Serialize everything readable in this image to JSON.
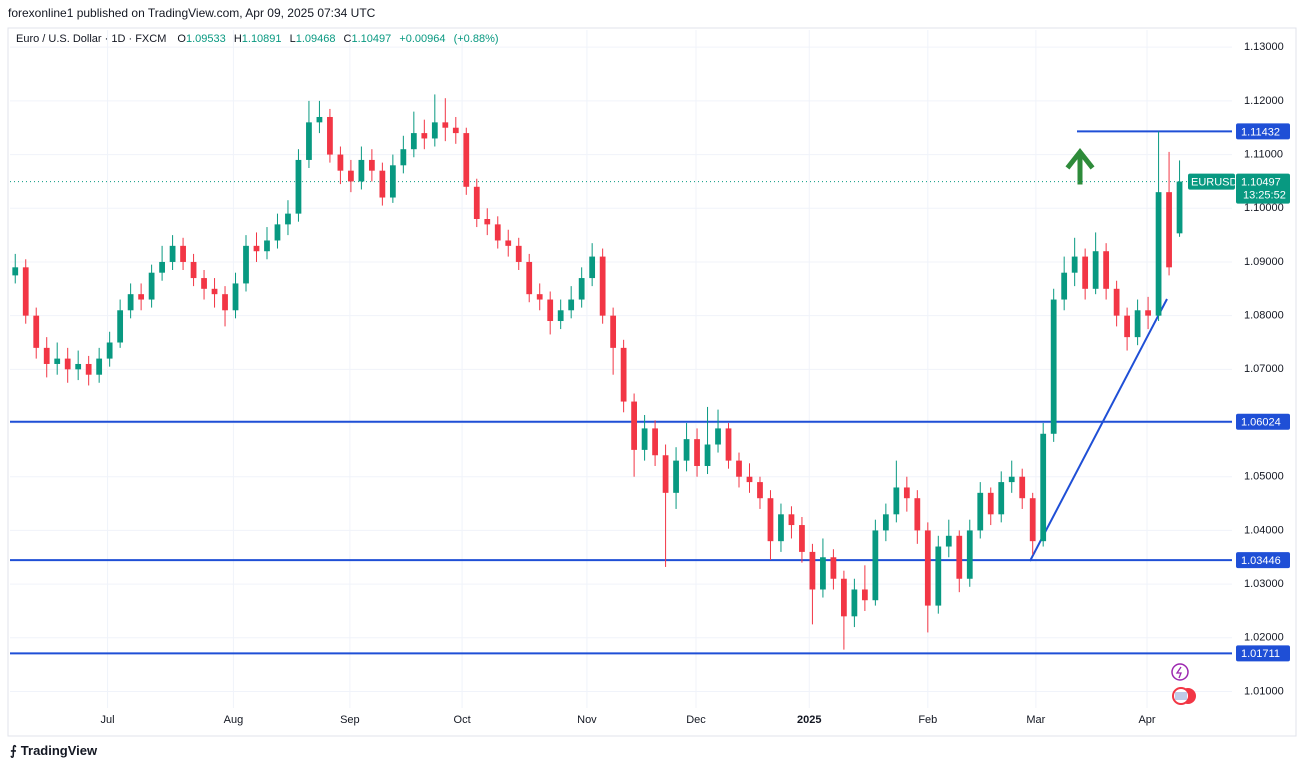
{
  "chart_data": {
    "type": "candlestick",
    "published": "forexonline1 published on TradingView.com, Apr 09, 2025 07:34 UTC",
    "title": "Euro / U.S. Dollar · 1D · FXCM",
    "ohlc_letters": [
      "O",
      "H",
      "L",
      "C"
    ],
    "change": "+0.00964",
    "change_pct": "(+0.88%)",
    "symbol": "EURUSD",
    "countdown": "13:25:52",
    "brand": "TradingView",
    "up_color": "#089981",
    "down_color": "#f23645",
    "line_color": "#1f4fd6",
    "grid": true,
    "ylim": [
      1.0073,
      1.1332
    ],
    "yticks": [
      {
        "value": 1.01,
        "label": "1.01000"
      },
      {
        "value": 1.02,
        "label": "1.02000"
      },
      {
        "value": 1.03,
        "label": "1.03000"
      },
      {
        "value": 1.04,
        "label": "1.04000"
      },
      {
        "value": 1.05,
        "label": "1.05000"
      },
      {
        "value": 1.06,
        "label": "1.06000"
      },
      {
        "value": 1.07,
        "label": "1.07000"
      },
      {
        "value": 1.08,
        "label": "1.08000"
      },
      {
        "value": 1.09,
        "label": "1.09000"
      },
      {
        "value": 1.1,
        "label": "1.10000"
      },
      {
        "value": 1.11,
        "label": "1.11000"
      },
      {
        "value": 1.12,
        "label": "1.12000"
      },
      {
        "value": 1.13,
        "label": "1.13000"
      }
    ],
    "xlim": [
      -0.5,
      116
    ],
    "xticks": [
      {
        "value": 8.8,
        "label": "Jul"
      },
      {
        "value": 20.8,
        "label": "Aug"
      },
      {
        "value": 31.9,
        "label": "Sep"
      },
      {
        "value": 42.6,
        "label": "Oct"
      },
      {
        "value": 54.5,
        "label": "Nov"
      },
      {
        "value": 64.9,
        "label": "Dec"
      },
      {
        "value": 75.7,
        "label": "2025"
      },
      {
        "value": 87.0,
        "label": "Feb"
      },
      {
        "value": 97.3,
        "label": "Mar"
      },
      {
        "value": 107.9,
        "label": "Apr"
      }
    ],
    "price_lines": [
      1.11432,
      1.06024,
      1.03446,
      1.01711
    ],
    "open": [
      1.0875,
      1.089,
      1.08,
      1.074,
      1.071,
      1.072,
      1.07,
      1.071,
      1.069,
      1.072,
      1.075,
      1.081,
      1.084,
      1.083,
      1.088,
      1.09,
      1.093,
      1.09,
      1.087,
      1.085,
      1.084,
      1.081,
      1.086,
      1.093,
      1.092,
      1.094,
      1.097,
      1.099,
      1.109,
      1.116,
      1.117,
      1.11,
      1.107,
      1.105,
      1.109,
      1.107,
      1.102,
      1.108,
      1.111,
      1.114,
      1.113,
      1.116,
      1.115,
      1.114,
      1.104,
      1.098,
      1.097,
      1.094,
      1.093,
      1.09,
      1.084,
      1.083,
      1.079,
      1.081,
      1.083,
      1.087,
      1.091,
      1.08,
      1.074,
      1.064,
      1.055,
      1.059,
      1.054,
      1.047,
      1.053,
      1.057,
      1.052,
      1.056,
      1.059,
      1.053,
      1.05,
      1.049,
      1.046,
      1.038,
      1.043,
      1.041,
      1.036,
      1.029,
      1.035,
      1.031,
      1.024,
      1.029,
      1.027,
      1.04,
      1.043,
      1.048,
      1.046,
      1.04,
      1.026,
      1.037,
      1.039,
      1.031,
      1.04,
      1.047,
      1.043,
      1.049,
      1.05,
      1.046,
      1.038,
      1.058,
      1.083,
      1.088,
      1.091,
      1.085,
      1.092,
      1.085,
      1.08,
      1.076,
      1.081,
      1.08,
      1.103,
      1.09533
    ],
    "high": [
      1.0915,
      1.0905,
      1.0815,
      1.076,
      1.075,
      1.074,
      1.0735,
      1.0725,
      1.074,
      1.077,
      1.083,
      1.086,
      1.086,
      1.0895,
      1.093,
      1.095,
      1.0945,
      1.0915,
      1.0885,
      1.087,
      1.0855,
      1.088,
      1.095,
      1.0955,
      1.0965,
      1.099,
      1.1015,
      1.111,
      1.12,
      1.12,
      1.1185,
      1.1115,
      1.109,
      1.1115,
      1.111,
      1.1085,
      1.11,
      1.1135,
      1.118,
      1.1165,
      1.1212,
      1.1205,
      1.117,
      1.115,
      1.1055,
      1.1,
      1.0985,
      1.096,
      1.0945,
      1.0915,
      1.086,
      1.0845,
      1.083,
      1.0855,
      1.089,
      1.0935,
      1.0925,
      1.0815,
      1.0755,
      1.0655,
      1.0615,
      1.0605,
      1.056,
      1.0555,
      1.06,
      1.059,
      1.063,
      1.0625,
      1.06,
      1.0545,
      1.0525,
      1.05,
      1.0475,
      1.045,
      1.0445,
      1.0425,
      1.0375,
      1.0385,
      1.0365,
      1.0325,
      1.031,
      1.0335,
      1.042,
      1.045,
      1.053,
      1.05,
      1.0475,
      1.0415,
      1.039,
      1.042,
      1.04,
      1.042,
      1.049,
      1.048,
      1.051,
      1.053,
      1.0515,
      1.047,
      1.06,
      1.085,
      1.091,
      1.0945,
      1.0925,
      1.0955,
      1.0935,
      1.0865,
      1.0815,
      1.083,
      1.0835,
      1.1143,
      1.1105,
      1.10891
    ],
    "low": [
      1.086,
      1.0785,
      1.072,
      1.0685,
      1.069,
      1.0675,
      1.068,
      1.067,
      1.0675,
      1.0705,
      1.074,
      1.0795,
      1.081,
      1.0815,
      1.0865,
      1.0885,
      1.0885,
      1.0855,
      1.083,
      1.0815,
      1.078,
      1.0795,
      1.0845,
      1.09,
      1.0905,
      1.0925,
      1.095,
      1.0975,
      1.1075,
      1.114,
      1.1085,
      1.1045,
      1.103,
      1.1035,
      1.105,
      1.1005,
      1.101,
      1.1065,
      1.1095,
      1.111,
      1.1115,
      1.1125,
      1.112,
      1.1025,
      1.0965,
      1.095,
      1.0925,
      1.091,
      1.0885,
      1.0825,
      1.081,
      1.0765,
      1.0775,
      1.0795,
      1.0815,
      1.0855,
      1.0785,
      1.069,
      1.062,
      1.05,
      1.053,
      1.052,
      1.0332,
      1.044,
      1.051,
      1.05,
      1.0505,
      1.0545,
      1.0515,
      1.048,
      1.047,
      1.044,
      1.0345,
      1.036,
      1.0385,
      1.034,
      1.0225,
      1.0275,
      1.029,
      1.0178,
      1.022,
      1.025,
      1.026,
      1.038,
      1.0415,
      1.0435,
      1.0375,
      1.021,
      1.0245,
      1.035,
      1.0285,
      1.0295,
      1.0385,
      1.041,
      1.0415,
      1.047,
      1.044,
      1.0355,
      1.037,
      1.0565,
      1.081,
      1.0855,
      1.083,
      1.084,
      1.083,
      1.078,
      1.0735,
      1.0745,
      1.0775,
      1.079,
      1.0875,
      1.09468
    ],
    "close": [
      1.089,
      1.08,
      1.074,
      1.071,
      1.072,
      1.07,
      1.071,
      1.069,
      1.072,
      1.075,
      1.081,
      1.084,
      1.083,
      1.088,
      1.09,
      1.093,
      1.09,
      1.087,
      1.085,
      1.084,
      1.081,
      1.086,
      1.093,
      1.092,
      1.094,
      1.097,
      1.099,
      1.109,
      1.116,
      1.117,
      1.11,
      1.107,
      1.105,
      1.109,
      1.107,
      1.102,
      1.108,
      1.111,
      1.114,
      1.113,
      1.116,
      1.115,
      1.114,
      1.104,
      1.098,
      1.097,
      1.094,
      1.093,
      1.09,
      1.084,
      1.083,
      1.079,
      1.081,
      1.083,
      1.087,
      1.091,
      1.08,
      1.074,
      1.064,
      1.055,
      1.059,
      1.054,
      1.047,
      1.053,
      1.057,
      1.052,
      1.056,
      1.059,
      1.053,
      1.05,
      1.049,
      1.046,
      1.038,
      1.043,
      1.041,
      1.036,
      1.029,
      1.035,
      1.031,
      1.024,
      1.029,
      1.027,
      1.04,
      1.043,
      1.048,
      1.046,
      1.04,
      1.026,
      1.037,
      1.039,
      1.031,
      1.04,
      1.047,
      1.043,
      1.049,
      1.05,
      1.046,
      1.038,
      1.058,
      1.083,
      1.088,
      1.091,
      1.085,
      1.092,
      1.085,
      1.08,
      1.076,
      1.081,
      1.08,
      1.103,
      1.089,
      1.10497
    ]
  }
}
